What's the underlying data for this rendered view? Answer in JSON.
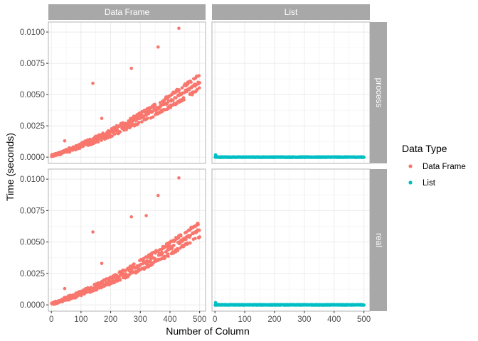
{
  "chart_data": {
    "type": "scatter",
    "facet_columns": [
      "Data Frame",
      "List"
    ],
    "facet_rows": [
      "process",
      "real"
    ],
    "xlabel": "Number of Column",
    "ylabel": "Time (seconds)",
    "xlim": [
      -10,
      520
    ],
    "ylim": [
      -0.0005,
      0.0108
    ],
    "x_ticks": [
      0,
      100,
      200,
      300,
      400,
      500
    ],
    "x_tick_labels": [
      "0",
      "100",
      "200",
      "300",
      "400",
      "500"
    ],
    "y_ticks": [
      0,
      0.0025,
      0.005,
      0.0075,
      0.01
    ],
    "y_tick_labels": [
      "0.0000",
      "0.0025",
      "0.0050",
      "0.0075",
      "0.0100"
    ],
    "grid": true,
    "legend": {
      "title": "Data Type",
      "placement": "right",
      "entries": [
        {
          "label": "Data Frame",
          "color": "#F8766D"
        },
        {
          "label": "List",
          "color": "#00BFC4"
        }
      ]
    },
    "series": [
      {
        "legend_label": "Data Frame",
        "color": "#F8766D",
        "model": {
          "x_from": 1,
          "x_to": 500,
          "coef_linear": 6.5e-06,
          "coef_quadratic": 8.5e-09,
          "band": 0.00035
        },
        "outliers": {
          "process": [
            [
              140,
              0.0059
            ],
            [
              170,
              0.0031
            ],
            [
              270,
              0.0071
            ],
            [
              360,
              0.0088
            ],
            [
              430,
              0.0103
            ],
            [
              45,
              0.0013
            ],
            [
              320,
              0.0036
            ],
            [
              395,
              0.0045
            ]
          ],
          "real": [
            [
              140,
              0.0058
            ],
            [
              170,
              0.0033
            ],
            [
              270,
              0.007
            ],
            [
              320,
              0.0071
            ],
            [
              360,
              0.0087
            ],
            [
              430,
              0.0101
            ],
            [
              45,
              0.0013
            ],
            [
              395,
              0.0046
            ]
          ]
        }
      },
      {
        "legend_label": "List",
        "color": "#00BFC4",
        "model": {
          "x_from": 1,
          "x_to": 500,
          "level": 0.0,
          "band": 4e-05
        },
        "outliers": {
          "process": [
            [
              2,
              0.00018
            ],
            [
              4,
              0.0001
            ]
          ],
          "real": [
            [
              2,
              0.00018
            ],
            [
              4,
              0.0001
            ]
          ]
        }
      }
    ]
  }
}
